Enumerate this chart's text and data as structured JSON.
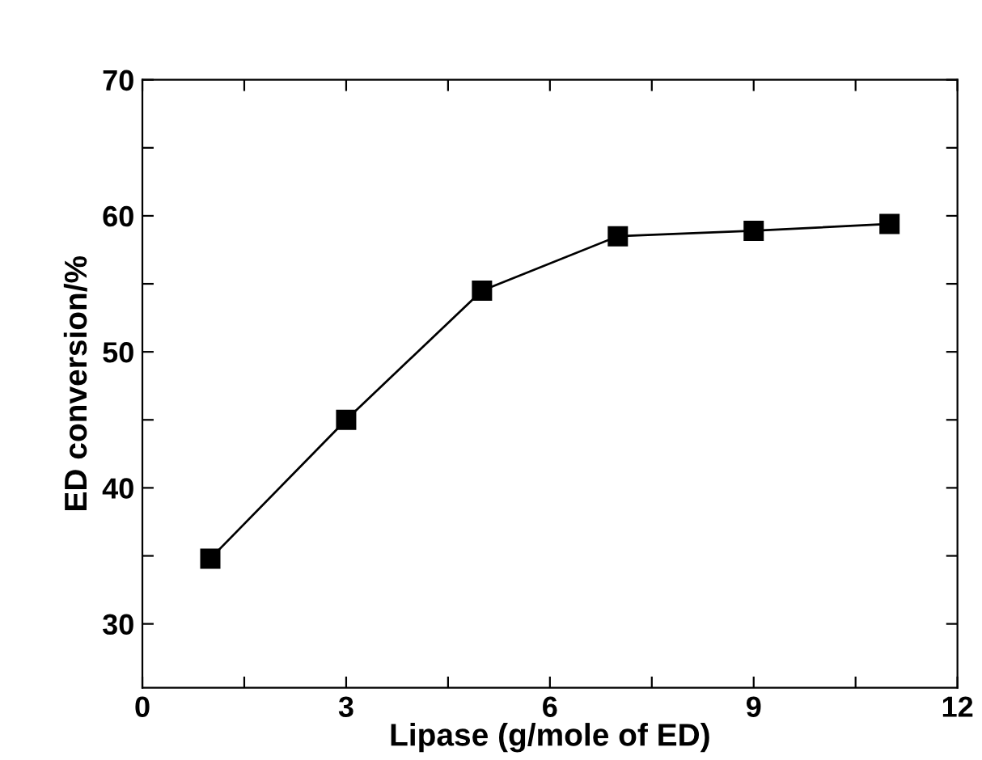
{
  "chart_data": {
    "type": "line",
    "xlabel": "Lipase (g/mole of ED)",
    "ylabel": "ED conversion/%",
    "x": [
      1,
      3,
      5,
      7,
      9,
      11
    ],
    "series": [
      {
        "color": "#000000",
        "values": [
          34.8,
          45.0,
          54.5,
          58.5,
          58.9,
          59.4
        ]
      }
    ],
    "xlim": [
      0,
      12
    ],
    "ylim": [
      25.3,
      70
    ],
    "xticks": [
      0,
      {
        "value": 1.5,
        "label": null
      },
      3,
      {
        "value": 4.5,
        "label": null
      },
      6,
      {
        "value": 7.5,
        "label": null
      },
      9,
      {
        "value": 10.5,
        "label": null
      },
      12
    ],
    "yticks": [
      30,
      {
        "value": 35,
        "label": null
      },
      40,
      {
        "value": 45,
        "label": null
      },
      50,
      {
        "value": 55,
        "label": null
      },
      60,
      {
        "value": 65,
        "label": null
      },
      70
    ],
    "marker": "square",
    "line_style": "solid",
    "grid": false,
    "legend": false
  }
}
